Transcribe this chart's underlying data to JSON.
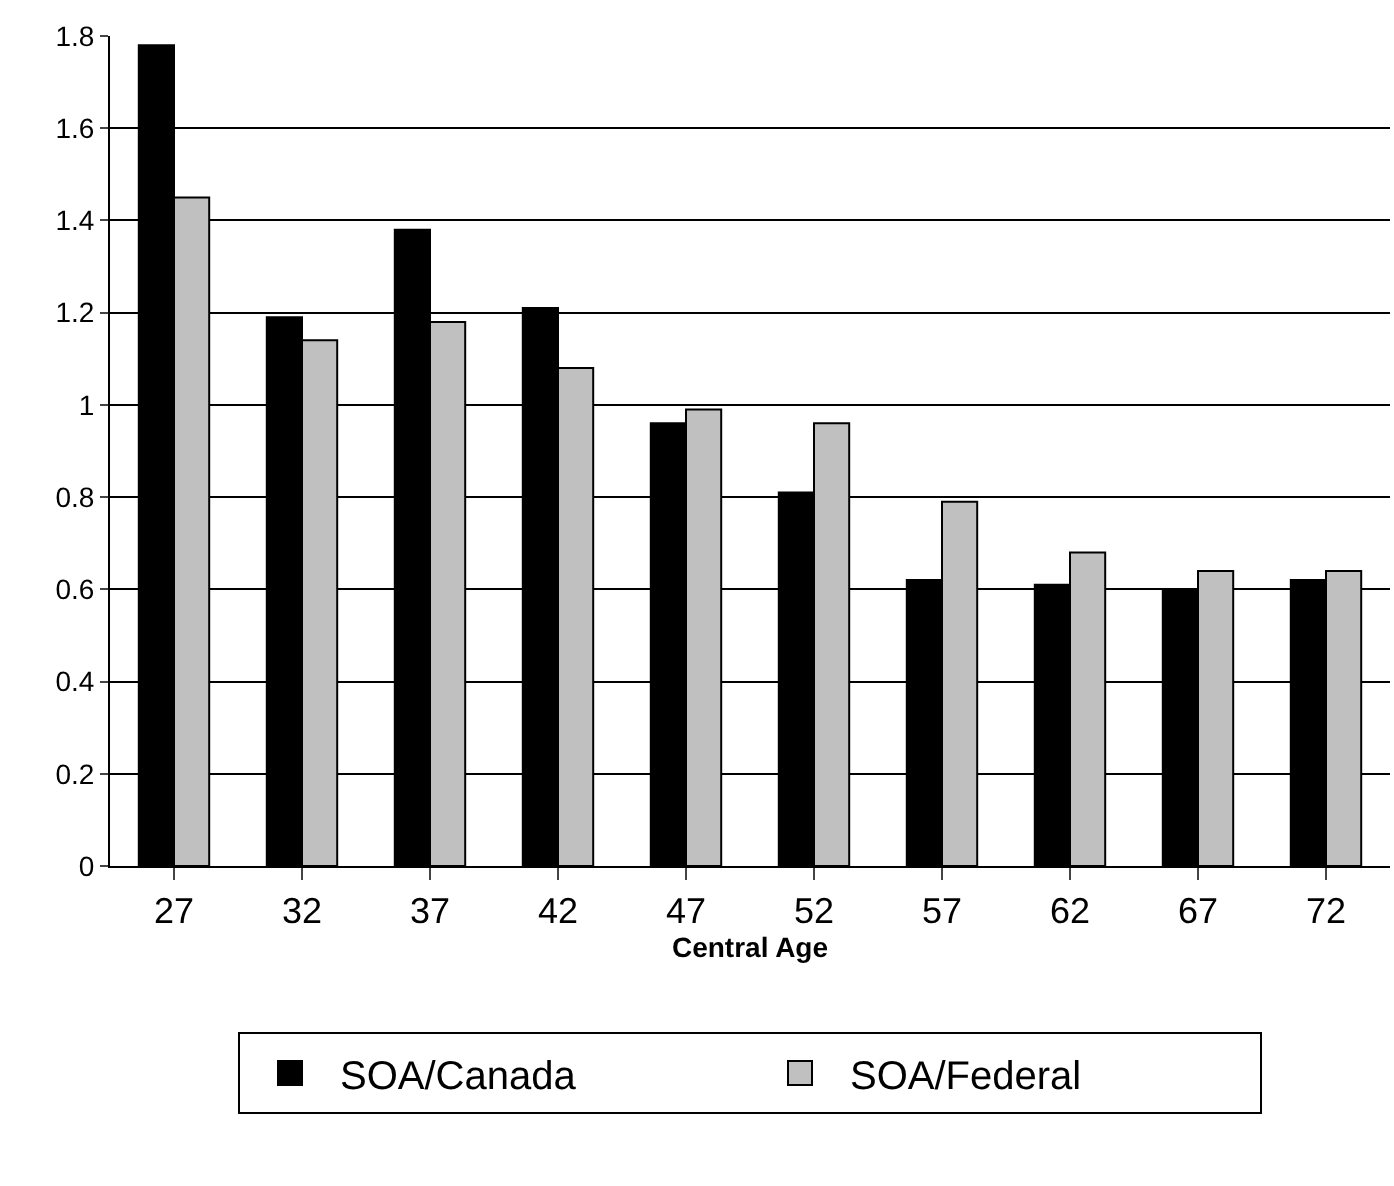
{
  "chart_data": {
    "type": "bar",
    "xlabel": "Central Age",
    "categories": [
      "27",
      "32",
      "37",
      "42",
      "47",
      "52",
      "57",
      "62",
      "67",
      "72"
    ],
    "series": [
      {
        "name": "SOA/Canada",
        "color": "#000000",
        "values": [
          1.78,
          1.19,
          1.38,
          1.21,
          0.96,
          0.81,
          0.62,
          0.61,
          0.6,
          0.62
        ]
      },
      {
        "name": "SOA/Federal",
        "color": "#c0c0c0",
        "values": [
          1.45,
          1.14,
          1.18,
          1.08,
          0.99,
          0.96,
          0.79,
          0.68,
          0.64,
          0.64
        ]
      }
    ],
    "ylim": [
      0,
      1.8
    ],
    "yticks": [
      0,
      0.2,
      0.4,
      0.6,
      0.8,
      1,
      1.2,
      1.4,
      1.6,
      1.8
    ],
    "grid": "y",
    "legend": "bottom"
  }
}
